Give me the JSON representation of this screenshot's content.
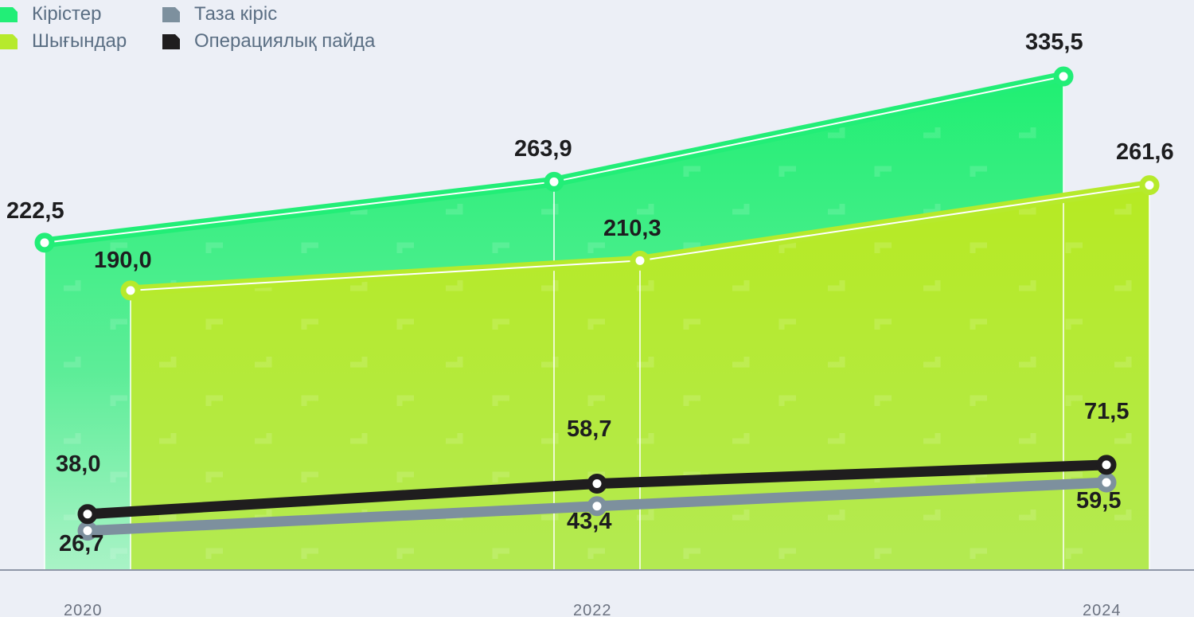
{
  "chart_data": {
    "type": "area",
    "x": [
      "2020",
      "2022",
      "2024"
    ],
    "series": [
      {
        "name": "Кірістер",
        "values": [
          222.5,
          263.9,
          335.5
        ],
        "labels": [
          "222,5",
          "263,9",
          "335,5"
        ],
        "color": "#22ee77",
        "style": "area"
      },
      {
        "name": "Шығындар",
        "values": [
          190.0,
          210.3,
          261.6
        ],
        "labels": [
          "190,0",
          "210,3",
          "261,6"
        ],
        "color": "#b6ea2c",
        "style": "area"
      },
      {
        "name": "Таза кіріс",
        "values": [
          26.7,
          43.4,
          59.5
        ],
        "labels": [
          "26,7",
          "43,4",
          "59,5"
        ],
        "color": "#7d909e",
        "style": "line"
      },
      {
        "name": "Операциялық пайда",
        "values": [
          38.0,
          58.7,
          71.5
        ],
        "labels": [
          "38,0",
          "58,7",
          "71,5"
        ],
        "color": "#1f1d1e",
        "style": "line"
      }
    ],
    "legend_position": "top-left",
    "grid": false
  }
}
